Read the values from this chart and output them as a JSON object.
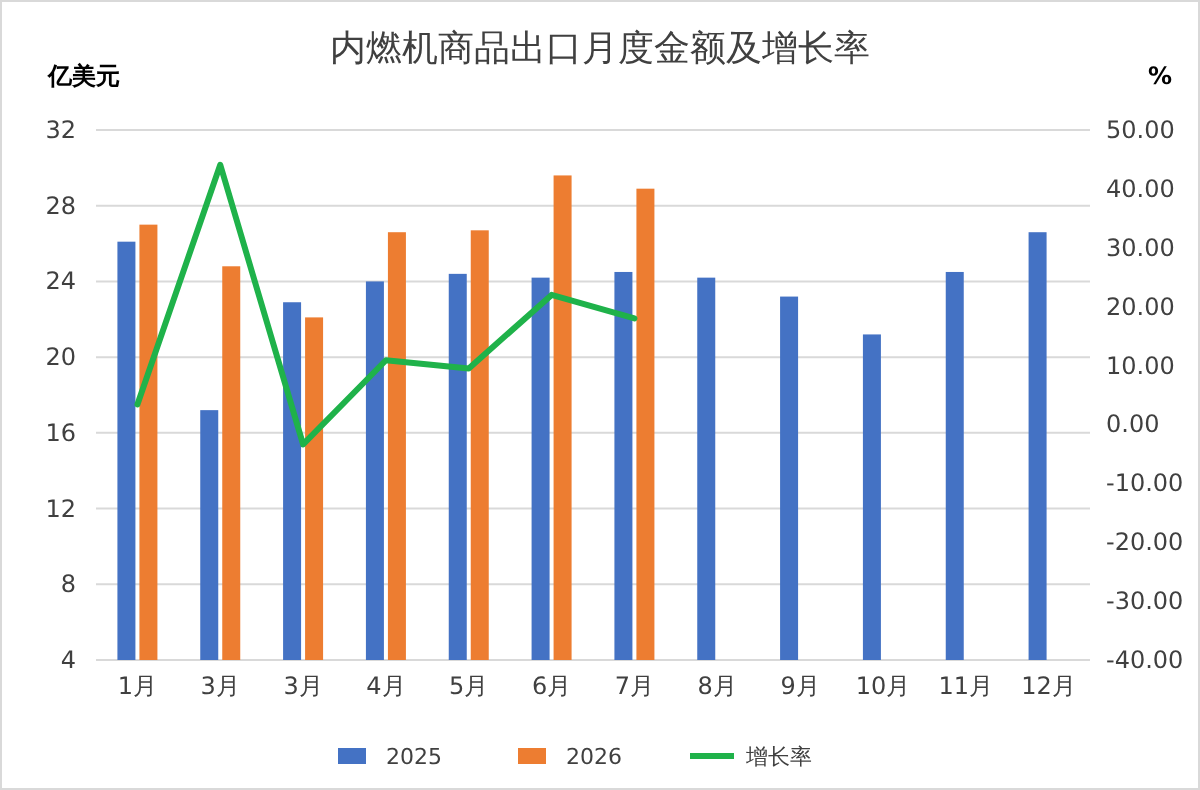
{
  "chart_data": {
    "type": "bar",
    "title": "内燃机商品出口月度金额及增长率",
    "ylabel": "亿美元",
    "y2label": "%",
    "categories": [
      "1月",
      "3月",
      "3月",
      "4月",
      "5月",
      "6月",
      "7月",
      "8月",
      "9月",
      "10月",
      "11月",
      "12月"
    ],
    "series": [
      {
        "name": "2025",
        "color": "#4472c4",
        "values": [
          26.1,
          17.2,
          22.9,
          24.0,
          24.4,
          24.2,
          24.5,
          24.2,
          23.2,
          21.2,
          24.5,
          26.6
        ]
      },
      {
        "name": "2026",
        "color": "#ed7d31",
        "values": [
          27.0,
          24.8,
          22.1,
          26.6,
          26.7,
          29.6,
          28.9,
          null,
          null,
          null,
          null,
          null
        ]
      },
      {
        "name": "增长率",
        "color": "#1fb24a",
        "type": "line",
        "axis": "y2",
        "values": [
          3.4,
          44.1,
          -3.4,
          10.9,
          9.5,
          22.0,
          18.0,
          null,
          null,
          null,
          null,
          null
        ]
      }
    ],
    "ylim": [
      4,
      32
    ],
    "yticks": [
      4,
      8,
      12,
      16,
      20,
      24,
      28,
      32
    ],
    "y2lim": [
      -40,
      50
    ],
    "y2ticks": [
      {
        "value": -40,
        "label": "-40.00"
      },
      {
        "value": -30,
        "label": "-30.00"
      },
      {
        "value": -20,
        "label": "-20.00"
      },
      {
        "value": -10,
        "label": "-10.00"
      },
      {
        "value": 0,
        "label": "0.00"
      },
      {
        "value": 10,
        "label": "10.00"
      },
      {
        "value": 20,
        "label": "20.00"
      },
      {
        "value": 30,
        "label": "30.00"
      },
      {
        "value": 40,
        "label": "40.00"
      },
      {
        "value": 50,
        "label": "50.00"
      }
    ],
    "grid": "y",
    "legend": "bottom"
  }
}
